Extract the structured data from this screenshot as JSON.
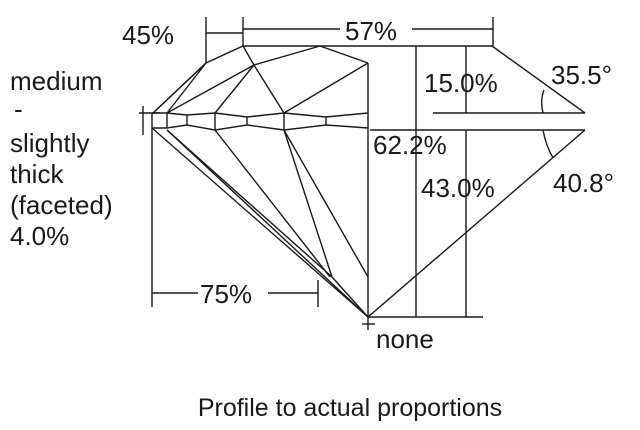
{
  "labels": {
    "star_length": "45%",
    "table": "57%",
    "crown_height": "15.0%",
    "crown_angle": "35.5°",
    "total_depth": "62.2%",
    "pavilion_depth": "43.0%",
    "pavilion_angle": "40.8°",
    "lower_half": "75%",
    "culet": "none",
    "girdle": [
      "medium",
      "-",
      "slightly",
      "thick",
      "(faceted)",
      "4.0%"
    ]
  },
  "caption": "Profile to actual proportions"
}
